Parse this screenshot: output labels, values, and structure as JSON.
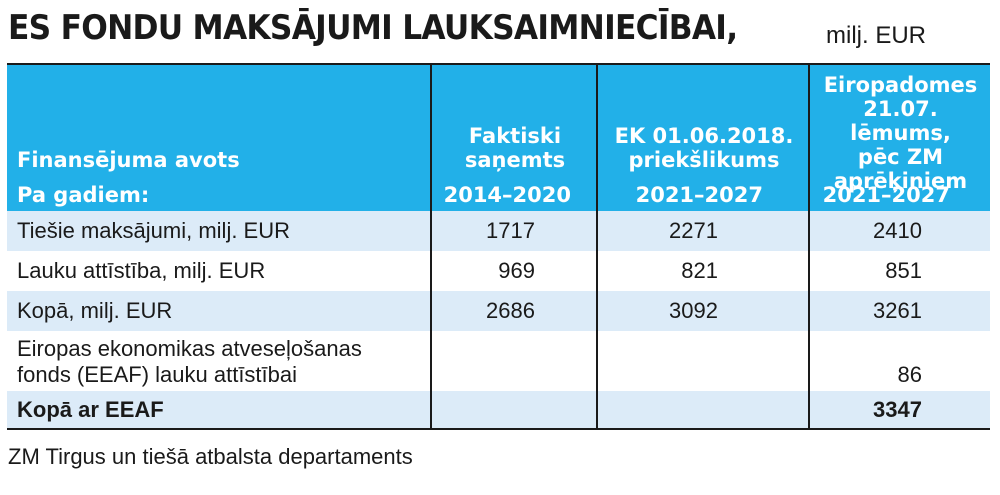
{
  "title": {
    "main": "ES FONDU MAKSĀJUMI LAUKSAIMNIECĪBAI,",
    "unit": "milj. EUR"
  },
  "table": {
    "header": {
      "source_col": "Finansējuma avots",
      "years_label": "Pa gadiem:",
      "columns": [
        {
          "label_lines": [
            "Faktiski",
            "saņemts"
          ],
          "period": "2014–2020"
        },
        {
          "label_lines": [
            "EK 01.06.2018.",
            "priekšlikums"
          ],
          "period": "2021–2027"
        },
        {
          "label_lines": [
            "Eiropadomes",
            "21.07. lēmums,",
            "pēc ZM",
            "aprēķiniem"
          ],
          "period": "2021–2027"
        }
      ]
    },
    "rows": [
      {
        "label_lines": [
          "Tiešie maksājumi, milj. EUR"
        ],
        "values": [
          "1717",
          "2271",
          "2410"
        ],
        "bold": false
      },
      {
        "label_lines": [
          "Lauku attīstība, milj. EUR"
        ],
        "values": [
          "969",
          "821",
          "851"
        ],
        "bold": false
      },
      {
        "label_lines": [
          "Kopā, milj. EUR"
        ],
        "values": [
          "2686",
          "3092",
          "3261"
        ],
        "bold": false
      },
      {
        "label_lines": [
          "Eiropas ekonomikas atveseļošanas",
          "fonds (EEAF) lauku attīstībai"
        ],
        "values": [
          "",
          "",
          "86"
        ],
        "bold": false
      },
      {
        "label_lines": [
          "Kopā ar EEAF"
        ],
        "values": [
          "",
          "",
          "3347"
        ],
        "bold": true
      }
    ]
  },
  "source": "ZM Tirgus un tiešā atbalsta departaments",
  "colors": {
    "header_bg": "#22b0e8",
    "stripe_bg": "#dcebf8",
    "lines": "#1a1a1a"
  }
}
